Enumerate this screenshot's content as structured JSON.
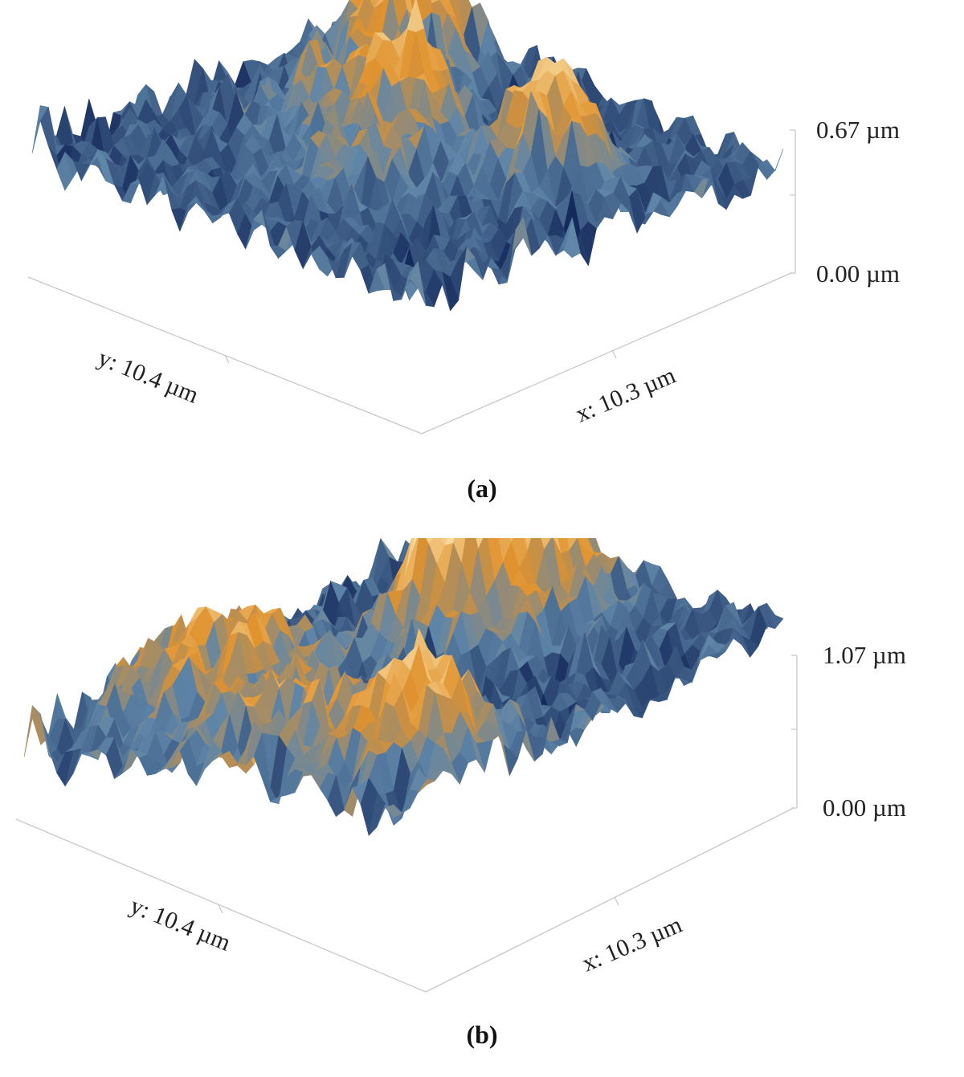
{
  "chart_data": [
    {
      "type": "surface3d",
      "panel_label": "(a)",
      "x_axis_label": "x: 10.3 µm",
      "y_axis_label": "y: 10.4 µm",
      "x_range_um": [
        0,
        10.3
      ],
      "y_range_um": [
        0,
        10.4
      ],
      "z_range_um": [
        0,
        0.67
      ],
      "z_ticks": [
        "0.67 µm",
        "0.00 µm"
      ],
      "colors": {
        "low": "#152a5c",
        "mid": "#5f86a8",
        "orange": "#e0922e",
        "high": "#fff3c4"
      },
      "seed": 11
    },
    {
      "type": "surface3d",
      "panel_label": "(b)",
      "x_axis_label": "x: 10.3 µm",
      "y_axis_label": "y: 10.4 µm",
      "x_range_um": [
        0,
        10.3
      ],
      "y_range_um": [
        0,
        10.4
      ],
      "z_range_um": [
        0,
        1.07
      ],
      "z_ticks": [
        "1.07 µm",
        "0.00 µm"
      ],
      "colors": {
        "low": "#152a5c",
        "mid": "#5f86a8",
        "orange": "#e0922e",
        "high": "#fff3c4"
      },
      "seed": 29
    }
  ]
}
